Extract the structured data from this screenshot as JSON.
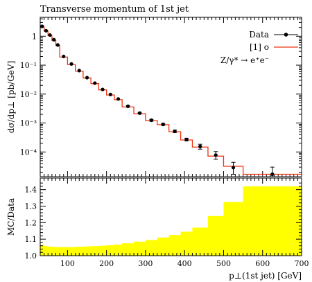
{
  "chart_data": [
    {
      "type": "line",
      "title": "Transverse momentum of 1st jet",
      "ylabel": "dσ/dp⊥ [pb/GeV]",
      "yscale": "log",
      "xlim": [
        30,
        700
      ],
      "ylim": [
        1.4e-05,
        4.5
      ],
      "y_ticks": [
        {
          "v": 1,
          "label": "1"
        },
        {
          "v": 0.1,
          "label": "10⁻¹"
        },
        {
          "v": 0.01,
          "label": "10⁻²"
        },
        {
          "v": 0.001,
          "label": "10⁻³"
        },
        {
          "v": 0.0001,
          "label": "10⁻⁴"
        }
      ],
      "legend_position": "top-right",
      "legend": {
        "data": "Data",
        "mc": "[1] o",
        "process": "Z/γ* → e⁺e⁻"
      },
      "bin_edges": [
        30,
        40,
        50,
        60,
        70,
        80,
        100,
        120,
        140,
        160,
        180,
        200,
        220,
        240,
        270,
        300,
        330,
        360,
        390,
        420,
        460,
        500,
        550,
        700
      ],
      "series": [
        {
          "name": "Data",
          "style": "points with error bars",
          "color": "#000000",
          "x": [
            35,
            45,
            55,
            65,
            75,
            90,
            110,
            130,
            150,
            170,
            190,
            210,
            230,
            255,
            285,
            315,
            345,
            375,
            405,
            440,
            480,
            525,
            625
          ],
          "values": [
            2.2,
            1.55,
            1.1,
            0.76,
            0.5,
            0.2,
            0.11,
            0.065,
            0.037,
            0.024,
            0.0145,
            0.0097,
            0.0068,
            0.0038,
            0.0022,
            0.00125,
            0.0009,
            0.00052,
            0.00027,
            0.000155,
            7.8e-05,
            2.9e-05,
            1.7e-05
          ],
          "err_low": [
            0.1,
            0.07,
            0.05,
            0.03,
            0.02,
            0.008,
            0.005,
            0.003,
            0.0017,
            0.0011,
            0.0007,
            0.0005,
            0.0004,
            0.0002,
            0.00013,
            9e-05,
            7e-05,
            5e-05,
            3e-05,
            3e-05,
            2.2e-05,
            1.2e-05,
            8e-06
          ],
          "err_high": [
            0.1,
            0.07,
            0.05,
            0.03,
            0.02,
            0.008,
            0.005,
            0.003,
            0.0017,
            0.0011,
            0.0007,
            0.0005,
            0.0004,
            0.0002,
            0.00013,
            9e-05,
            7e-05,
            5e-05,
            3e-05,
            3e-05,
            2.5e-05,
            1.5e-05,
            1.3e-05
          ]
        },
        {
          "name": "[1] o",
          "style": "step histogram",
          "color": "#ee3311",
          "values": [
            2.1,
            1.5,
            1.05,
            0.72,
            0.48,
            0.19,
            0.105,
            0.062,
            0.036,
            0.023,
            0.014,
            0.0093,
            0.0064,
            0.0036,
            0.0021,
            0.00122,
            0.00088,
            0.0005,
            0.00026,
            0.000148,
            7.2e-05,
            3.2e-05,
            1.7e-05
          ]
        }
      ]
    },
    {
      "type": "area",
      "ylabel": "MC/Data",
      "xlabel": "p⊥(1st jet) [GeV]",
      "xlim": [
        30,
        700
      ],
      "ylim": [
        1.0,
        1.47
      ],
      "x_ticks": [
        100,
        200,
        300,
        400,
        500,
        600,
        700
      ],
      "y_ticks": [
        1.0,
        1.1,
        1.2,
        1.3,
        1.4
      ],
      "bin_edges": [
        30,
        40,
        50,
        60,
        70,
        80,
        100,
        120,
        140,
        160,
        180,
        200,
        220,
        240,
        270,
        300,
        330,
        360,
        390,
        420,
        460,
        500,
        550,
        700
      ],
      "series": [
        {
          "name": "MC/Data uncertainty band",
          "color": "#ffff00",
          "low": [
            1.0,
            1.0,
            1.0,
            1.0,
            1.0,
            1.0,
            1.0,
            1.0,
            1.0,
            1.0,
            1.0,
            1.0,
            1.0,
            1.0,
            1.0,
            1.0,
            1.0,
            1.0,
            1.0,
            1.0,
            1.0,
            1.0,
            1.0
          ],
          "high": [
            1.065,
            1.058,
            1.055,
            1.053,
            1.052,
            1.052,
            1.052,
            1.054,
            1.056,
            1.058,
            1.06,
            1.063,
            1.067,
            1.075,
            1.085,
            1.095,
            1.11,
            1.125,
            1.145,
            1.17,
            1.24,
            1.325,
            1.42
          ]
        }
      ]
    }
  ]
}
